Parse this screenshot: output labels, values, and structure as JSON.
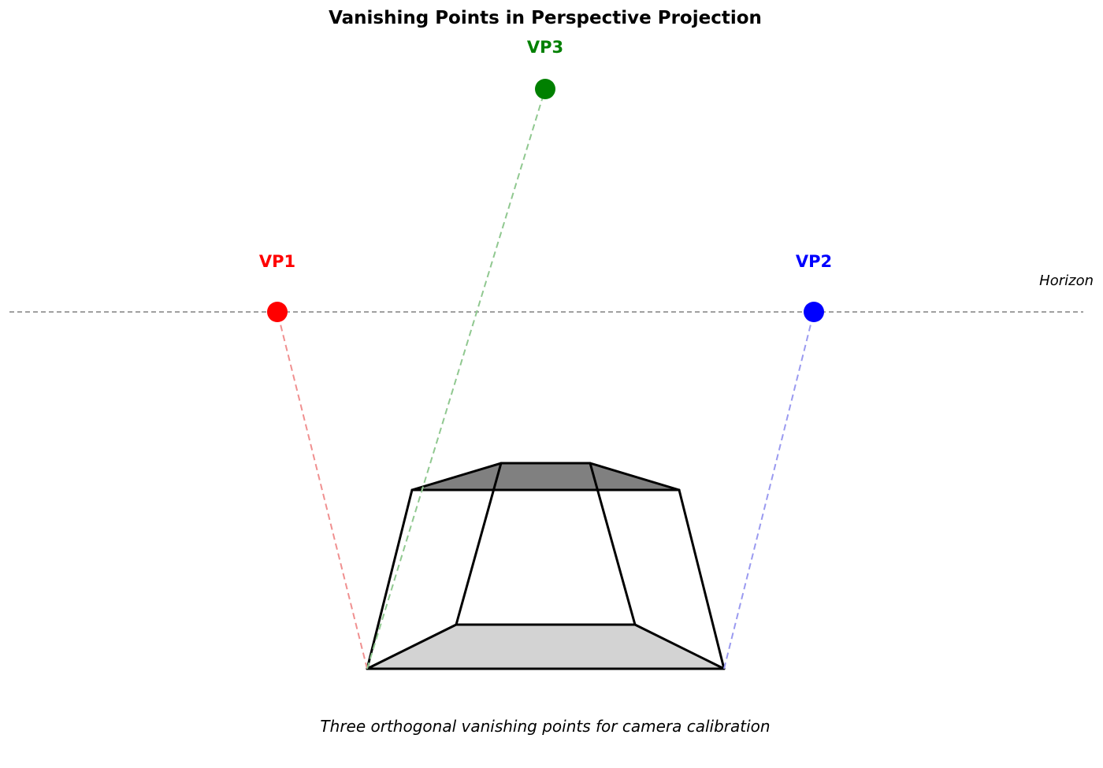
{
  "title": "Vanishing Points in Perspective Projection",
  "horizon_label": "Horizon",
  "caption": "Three orthogonal vanishing points for camera calibration",
  "colors": {
    "vp1": "#ff0000",
    "vp2": "#0000ff",
    "vp3": "#008000",
    "guide_vp1": "#f09090",
    "guide_vp2": "#9a9af0",
    "guide_vp3": "#90c890",
    "horizon": "#808080",
    "top_face": "#808080",
    "bottom_face": "#d3d3d3",
    "edge": "#000000"
  },
  "vanishing_points": [
    {
      "id": "vp1",
      "label": "VP1"
    },
    {
      "id": "vp2",
      "label": "VP2"
    },
    {
      "id": "vp3",
      "label": "VP3"
    }
  ]
}
